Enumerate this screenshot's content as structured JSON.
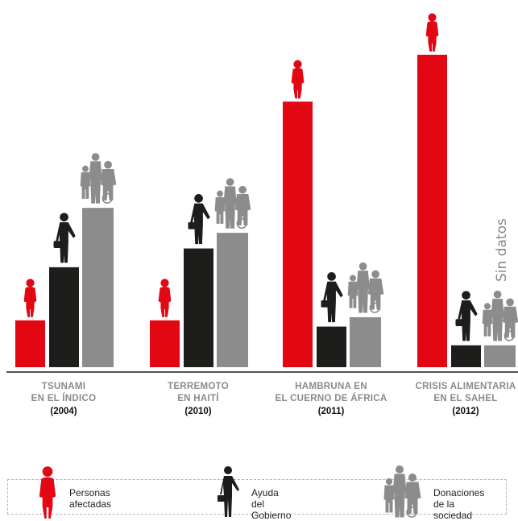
{
  "colors": {
    "affected": "#e30613",
    "government": "#1d1d1b",
    "society": "#8c8c8c",
    "baseline": "#1d1d1b",
    "label_gray": "#8a8a8a"
  },
  "chart_data": {
    "type": "bar",
    "categories": [
      {
        "line1": "TSUNAMI",
        "line2": "EN EL ÍNDICO",
        "year": "(2004)"
      },
      {
        "line1": "TERREMOTO",
        "line2": "EN HAITÍ",
        "year": "(2010)"
      },
      {
        "line1": "HAMBRUNA EN",
        "line2": "EL CUERNO DE ÁFRICA",
        "year": "(2011)"
      },
      {
        "line1": "CRISIS ALIMENTARIA",
        "line2": "EN EL SAHEL",
        "year": "(2012)"
      }
    ],
    "series": [
      {
        "name": "Personas afectadas",
        "key": "affected",
        "values": [
          15,
          15,
          85,
          100
        ]
      },
      {
        "name": "Ayuda del Gobierno",
        "key": "government",
        "values": [
          32,
          38,
          13,
          7
        ]
      },
      {
        "name": "Donaciones de la sociedad",
        "key": "society",
        "values": [
          51,
          43,
          16,
          7
        ]
      }
    ],
    "annotations": [
      {
        "category_index": 3,
        "text": "Sin datos"
      }
    ],
    "ylim": [
      0,
      100
    ],
    "grid": false,
    "legend": "bottom"
  },
  "legend": [
    {
      "line1": "Personas",
      "line2": "afectadas",
      "icon": "person-icon"
    },
    {
      "line1": "Ayuda",
      "line2": "del Gobierno",
      "icon": "businessman-icon"
    },
    {
      "line1": "Donaciones",
      "line2": "de la sociedad",
      "icon": "family-icon"
    }
  ]
}
